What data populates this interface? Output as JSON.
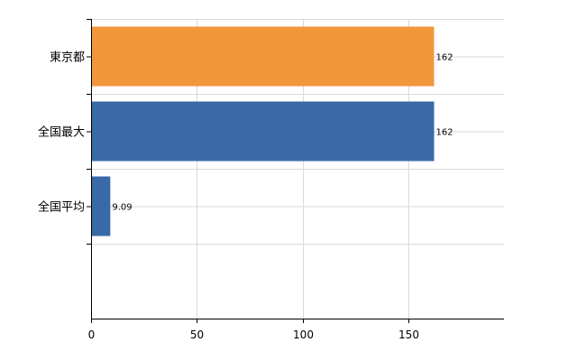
{
  "chart_data": {
    "type": "bar",
    "orientation": "horizontal",
    "categories": [
      "東京都",
      "全国最大",
      "全国平均"
    ],
    "values": [
      162,
      162,
      9.09
    ],
    "value_labels": [
      "162",
      "162",
      "9.09"
    ],
    "bar_colors": [
      "#f0973c",
      "#3a69a8",
      "#3a69a8"
    ],
    "xlim": [
      0,
      195
    ],
    "xticks": [
      0,
      50,
      100,
      150
    ],
    "xtick_labels": [
      "0",
      "50",
      "100",
      "150"
    ],
    "grid": true,
    "legend": "none"
  }
}
